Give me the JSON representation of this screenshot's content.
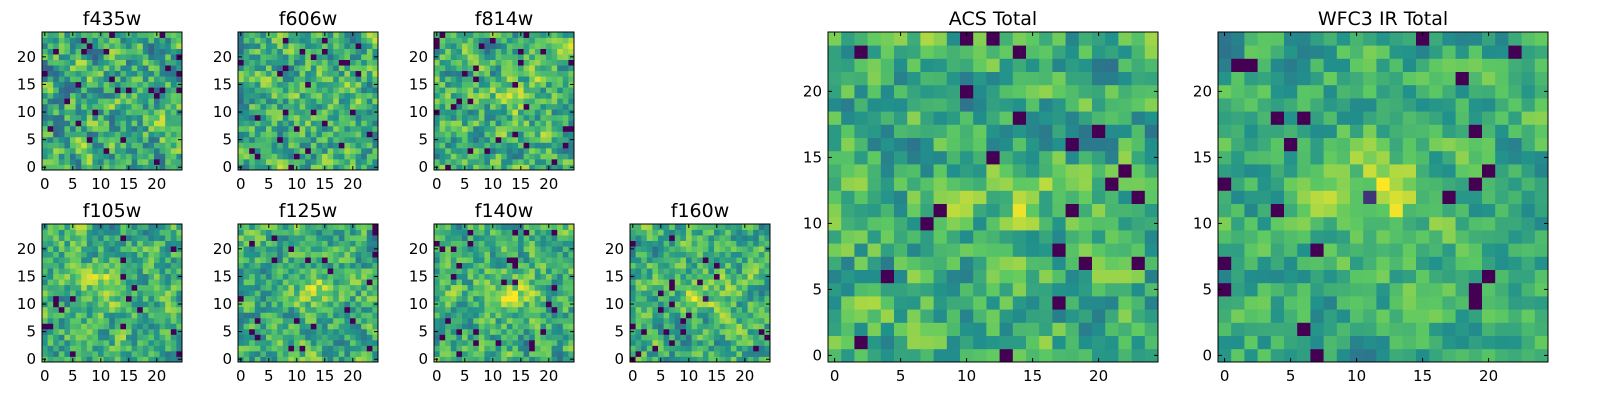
{
  "colormap": [
    "#440154",
    "#3b528b",
    "#21918c",
    "#5ec962",
    "#fde725"
  ],
  "chart_data": [
    {
      "type": "heatmap",
      "title": "f435w",
      "grid_size": 25,
      "xlim": [
        -0.5,
        24.5
      ],
      "ylim": [
        -0.5,
        24.5
      ],
      "xticks": [
        0,
        5,
        10,
        15,
        20
      ],
      "yticks": [
        0,
        5,
        10,
        15,
        20
      ],
      "source_peak": [
        15,
        12
      ],
      "source_strength": 0.0,
      "noise_level": 0.55,
      "seed": 11
    },
    {
      "type": "heatmap",
      "title": "f606w",
      "grid_size": 25,
      "xlim": [
        -0.5,
        24.5
      ],
      "ylim": [
        -0.5,
        24.5
      ],
      "xticks": [
        0,
        5,
        10,
        15,
        20
      ],
      "yticks": [
        0,
        5,
        10,
        15,
        20
      ],
      "source_peak": [
        14,
        12
      ],
      "source_strength": 0.15,
      "noise_level": 0.5,
      "seed": 23
    },
    {
      "type": "heatmap",
      "title": "f814w",
      "grid_size": 25,
      "xlim": [
        -0.5,
        24.5
      ],
      "ylim": [
        -0.5,
        24.5
      ],
      "xticks": [
        0,
        5,
        10,
        15,
        20
      ],
      "yticks": [
        0,
        5,
        10,
        15,
        20
      ],
      "source_peak": [
        14,
        12
      ],
      "source_strength": 0.3,
      "noise_level": 0.5,
      "seed": 37
    },
    {
      "type": "heatmap",
      "title": "f105w",
      "grid_size": 25,
      "xlim": [
        -0.5,
        24.5
      ],
      "ylim": [
        -0.5,
        24.5
      ],
      "xticks": [
        0,
        5,
        10,
        15,
        20
      ],
      "yticks": [
        0,
        5,
        10,
        15,
        20
      ],
      "source_peak": [
        11,
        13
      ],
      "source_strength": 0.45,
      "noise_level": 0.45,
      "seed": 41
    },
    {
      "type": "heatmap",
      "title": "f125w",
      "grid_size": 25,
      "xlim": [
        -0.5,
        24.5
      ],
      "ylim": [
        -0.5,
        24.5
      ],
      "xticks": [
        0,
        5,
        10,
        15,
        20
      ],
      "yticks": [
        0,
        5,
        10,
        15,
        20
      ],
      "source_peak": [
        14,
        12
      ],
      "source_strength": 0.4,
      "noise_level": 0.45,
      "seed": 53
    },
    {
      "type": "heatmap",
      "title": "f140w",
      "grid_size": 25,
      "xlim": [
        -0.5,
        24.5
      ],
      "ylim": [
        -0.5,
        24.5
      ],
      "xticks": [
        0,
        5,
        10,
        15,
        20
      ],
      "yticks": [
        0,
        5,
        10,
        15,
        20
      ],
      "source_peak": [
        14,
        12
      ],
      "source_strength": 0.45,
      "noise_level": 0.45,
      "seed": 67
    },
    {
      "type": "heatmap",
      "title": "f160w",
      "grid_size": 25,
      "xlim": [
        -0.5,
        24.5
      ],
      "ylim": [
        -0.5,
        24.5
      ],
      "xticks": [
        0,
        5,
        10,
        15,
        20
      ],
      "yticks": [
        0,
        5,
        10,
        15,
        20
      ],
      "source_peak": [
        13,
        12
      ],
      "source_strength": 0.45,
      "noise_level": 0.45,
      "seed": 79
    },
    {
      "type": "heatmap",
      "title": "ACS Total",
      "grid_size": 25,
      "xlim": [
        -0.5,
        24.5
      ],
      "ylim": [
        -0.5,
        24.5
      ],
      "xticks": [
        0,
        5,
        10,
        15,
        20
      ],
      "yticks": [
        0,
        5,
        10,
        15,
        20
      ],
      "source_peak": [
        14,
        12
      ],
      "source_strength": 0.3,
      "noise_level": 0.45,
      "seed": 97
    },
    {
      "type": "heatmap",
      "title": "WFC3 IR Total",
      "grid_size": 25,
      "xlim": [
        -0.5,
        24.5
      ],
      "ylim": [
        -0.5,
        24.5
      ],
      "xticks": [
        0,
        5,
        10,
        15,
        20
      ],
      "yticks": [
        0,
        5,
        10,
        15,
        20
      ],
      "source_peak": [
        12,
        12
      ],
      "source_strength": 0.65,
      "noise_level": 0.35,
      "seed": 103
    }
  ]
}
